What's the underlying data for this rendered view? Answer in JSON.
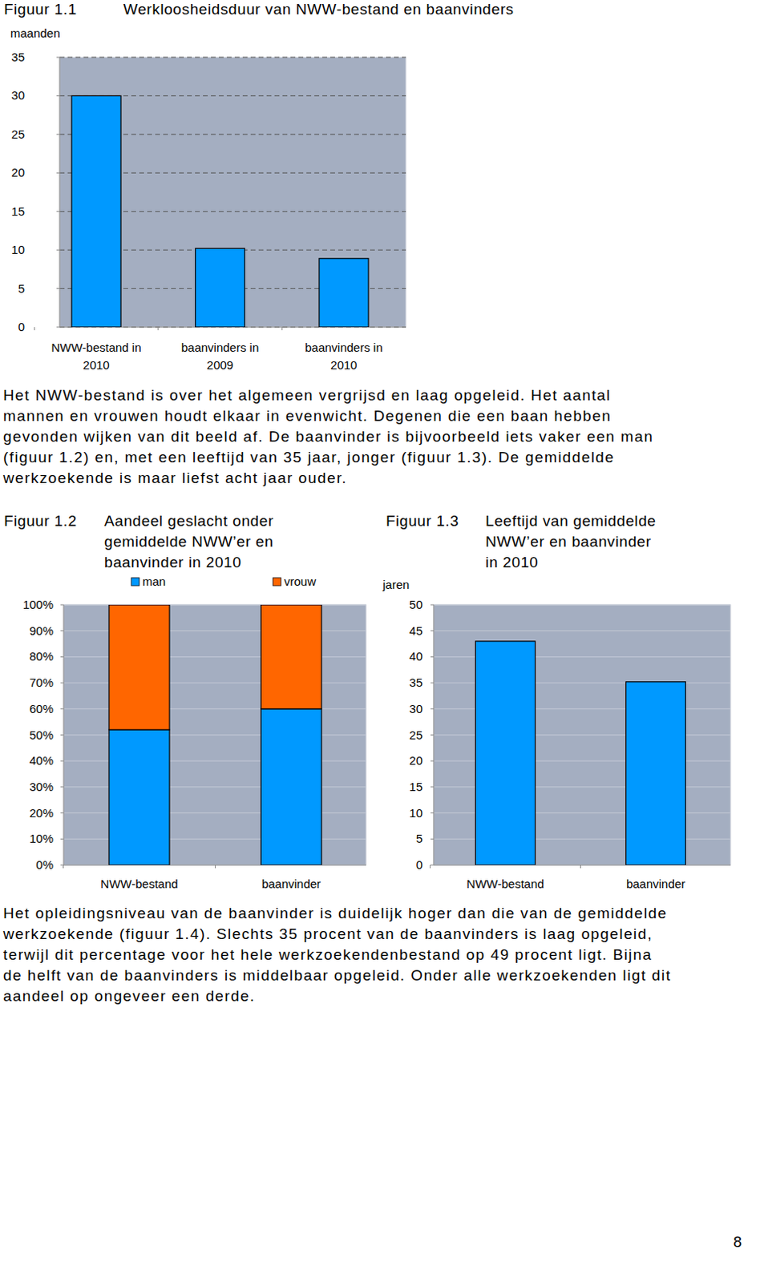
{
  "chart_data": [
    {
      "type": "bar",
      "figure": "Figuur 1.1",
      "title": "Werkloosheidsduur van NWW-bestand en baanvinders",
      "ylabel": "maanden",
      "categories": [
        "NWW-bestand in\n2010",
        "baanvinders in\n2009",
        "baanvinders in\n2010"
      ],
      "values": [
        30,
        10.2,
        8.9
      ],
      "color": "#0099ff",
      "ylim": [
        0,
        35
      ],
      "yticks": [
        0,
        5,
        10,
        15,
        20,
        25,
        30,
        35
      ],
      "grid": true
    },
    {
      "type": "bar",
      "figure": "Figuur 1.2",
      "title": "Aandeel geslacht onder\ngemiddelde NWW’er en\nbaanvinder in 2010",
      "categories": [
        "NWW-bestand",
        "baanvinder"
      ],
      "stacked": true,
      "legend": "top",
      "series": [
        {
          "name": "man",
          "color": "#0099ff",
          "values": [
            52,
            60
          ]
        },
        {
          "name": "vrouw",
          "color": "#ff6600",
          "values": [
            48,
            40
          ]
        }
      ],
      "ylim": [
        0,
        100
      ],
      "yticks": [
        {
          "value": 0,
          "label": "0%"
        },
        {
          "value": 10,
          "label": "10%"
        },
        {
          "value": 20,
          "label": "20%"
        },
        {
          "value": 30,
          "label": "30%"
        },
        {
          "value": 40,
          "label": "40%"
        },
        {
          "value": 50,
          "label": "50%"
        },
        {
          "value": 60,
          "label": "60%"
        },
        {
          "value": 70,
          "label": "70%"
        },
        {
          "value": 80,
          "label": "80%"
        },
        {
          "value": 90,
          "label": "90%"
        },
        {
          "value": 100,
          "label": "100%"
        }
      ],
      "grid": true
    },
    {
      "type": "bar",
      "figure": "Figuur 1.3",
      "title": "Leeftijd van gemiddelde\nNWW’er en baanvinder\nin 2010",
      "ylabel": "jaren",
      "categories": [
        "NWW-bestand",
        "baanvinder"
      ],
      "values": [
        43,
        35.2
      ],
      "color": "#0099ff",
      "ylim": [
        0,
        50
      ],
      "yticks": [
        0,
        5,
        10,
        15,
        20,
        25,
        30,
        35,
        40,
        45,
        50
      ],
      "grid": true
    }
  ],
  "document": {
    "paragraphs": [
      "Het NWW-bestand is over het algemeen vergrijsd en laag opgeleid. Het aantal\nmannen en vrouwen houdt elkaar in evenwicht. Degenen die een baan hebben\ngevonden wijken van dit beeld af. De baanvinder is bijvoorbeeld iets vaker een man\n(figuur 1.2) en, met een leeftijd van 35 jaar, jonger (figuur 1.3). De gemiddelde\nwerkzoekende is maar liefst acht jaar ouder.",
      "Het opleidingsniveau van de baanvinder is duidelijk hoger dan die van de gemiddelde\nwerkzoekende (figuur 1.4). Slechts 35 procent van de baanvinders is laag opgeleid,\nterwijl dit percentage voor het hele werkzoekendenbestand op 49 procent ligt. Bijna\nde helft van de baanvinders is middelbaar opgeleid. Onder alle werkzoekenden ligt dit\naandeel op ongeveer een derde."
    ],
    "page_number": "8"
  }
}
